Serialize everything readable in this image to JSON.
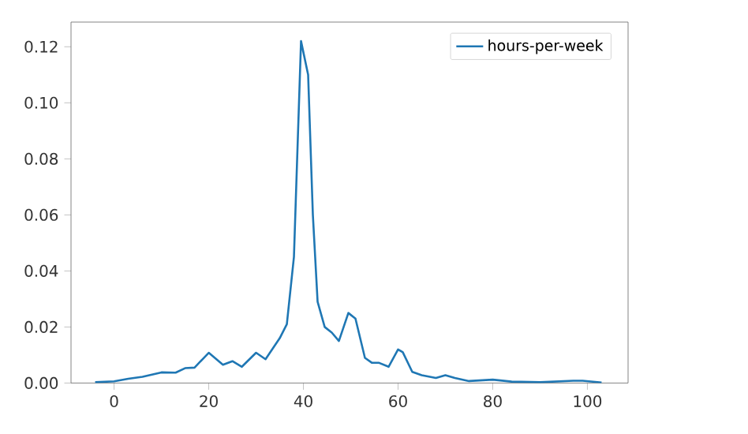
{
  "chart_data": {
    "type": "line",
    "x": [
      -4,
      0,
      3,
      6,
      10,
      13,
      15,
      17,
      20,
      23,
      25,
      27,
      30,
      32,
      35,
      36.5,
      38,
      39.5,
      41,
      42,
      43,
      44.5,
      46,
      47.5,
      49.5,
      51,
      53,
      54.5,
      56,
      58,
      60,
      61,
      63,
      65,
      68,
      70,
      72,
      75,
      80,
      84,
      90,
      97,
      99,
      103
    ],
    "series": [
      {
        "name": "hours-per-week",
        "color": "#1f77b4",
        "values": [
          0.0003,
          0.0006,
          0.0015,
          0.0022,
          0.0038,
          0.0037,
          0.0053,
          0.0055,
          0.0108,
          0.0065,
          0.0078,
          0.0058,
          0.0108,
          0.0085,
          0.016,
          0.021,
          0.045,
          0.122,
          0.11,
          0.06,
          0.029,
          0.02,
          0.018,
          0.015,
          0.025,
          0.023,
          0.009,
          0.0072,
          0.0072,
          0.0058,
          0.012,
          0.011,
          0.004,
          0.0028,
          0.0018,
          0.0028,
          0.0018,
          0.0007,
          0.0012,
          0.0005,
          0.0003,
          0.0008,
          0.0008,
          0.0002
        ]
      }
    ],
    "xlim": [
      -9.1,
      108.6
    ],
    "ylim": [
      0,
      0.1288
    ],
    "xticks": [
      0,
      20,
      40,
      60,
      80,
      100
    ],
    "yticks": [
      {
        "value": 0,
        "label": "0.00"
      },
      {
        "value": 0.02,
        "label": "0.02"
      },
      {
        "value": 0.04,
        "label": "0.04"
      },
      {
        "value": 0.06,
        "label": "0.06"
      },
      {
        "value": 0.08,
        "label": "0.08"
      },
      {
        "value": 0.1,
        "label": "0.10"
      },
      {
        "value": 0.12,
        "label": "0.12"
      }
    ],
    "legend": "top right",
    "grid": false,
    "marker": "none",
    "line_style": "solid"
  }
}
